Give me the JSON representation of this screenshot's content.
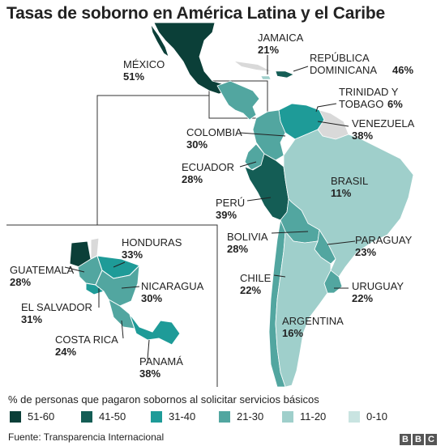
{
  "title": "Tasas de soborno en América Latina y el Caribe",
  "legend": {
    "caption": "% de personas que pagaron sobornos al solicitar servicios básicos",
    "bins": [
      {
        "label": "51-60",
        "color": "#0b3f38"
      },
      {
        "label": "41-50",
        "color": "#145d55"
      },
      {
        "label": "31-40",
        "color": "#1e9b98"
      },
      {
        "label": "21-30",
        "color": "#52a6a0"
      },
      {
        "label": "11-20",
        "color": "#9fcfcb"
      },
      {
        "label": "0-10",
        "color": "#c9e4e1"
      }
    ]
  },
  "countries": [
    {
      "name": "MÉXICO",
      "pct": "51%"
    },
    {
      "name": "JAMAICA",
      "pct": "21%"
    },
    {
      "name1": "REPÚBLICA",
      "name2": "DOMINICANA",
      "pct": "46%"
    },
    {
      "name1": "TRINIDAD Y",
      "name2": "TOBAGO",
      "pct": "6%"
    },
    {
      "name": "VENEZUELA",
      "pct": "38%"
    },
    {
      "name": "COLOMBIA",
      "pct": "30%"
    },
    {
      "name": "ECUADOR",
      "pct": "28%"
    },
    {
      "name": "BRASIL",
      "pct": "11%"
    },
    {
      "name": "PERÚ",
      "pct": "39%"
    },
    {
      "name": "BOLIVIA",
      "pct": "28%"
    },
    {
      "name": "PARAGUAY",
      "pct": "23%"
    },
    {
      "name": "CHILE",
      "pct": "22%"
    },
    {
      "name": "URUGUAY",
      "pct": "22%"
    },
    {
      "name": "ARGENTINA",
      "pct": "16%"
    },
    {
      "name": "HONDURAS",
      "pct": "33%"
    },
    {
      "name": "GUATEMALA",
      "pct": "28%"
    },
    {
      "name": "NICARAGUA",
      "pct": "30%"
    },
    {
      "name": "EL SALVADOR",
      "pct": "31%"
    },
    {
      "name": "COSTA RICA",
      "pct": "24%"
    },
    {
      "name": "PANAMÁ",
      "pct": "38%"
    }
  ],
  "source": "Fuente: Transparencia Internacional",
  "logo": "BBC"
}
